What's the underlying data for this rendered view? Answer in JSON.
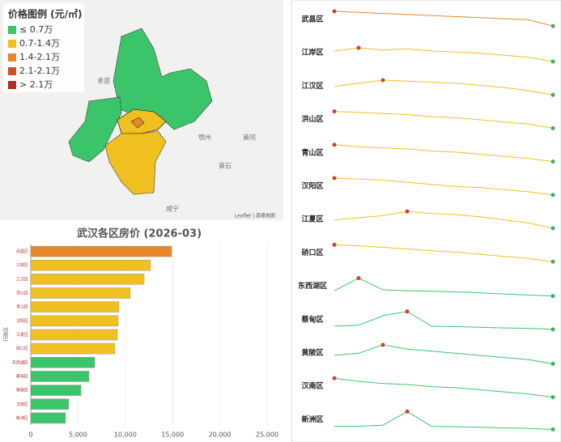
{
  "map": {
    "legend": {
      "title": "价格图例 (元/㎡)",
      "items": [
        "≤ 0.7万",
        "0.7-1.4万",
        "1.4-2.1万",
        "2.1-2.1万",
        "> 2.1万"
      ],
      "colors": [
        "#3cc46a",
        "#f0c020",
        "#e8862a",
        "#d0502a",
        "#a8321e"
      ]
    },
    "places": [
      "孝感",
      "黄冈",
      "鄂州",
      "黄石",
      "咸宁"
    ],
    "attribution": "Leaflet | 高德地图"
  },
  "chart_data": [
    {
      "type": "hbar",
      "title": "武汉各区房价 (2026-03)",
      "y_label": "行政区",
      "categories": [
        "武昌区",
        "江岸区",
        "江汉区",
        "洪山区",
        "青山区",
        "汉阳区",
        "江夏区",
        "硚口区",
        "东西湖区",
        "蔡甸区",
        "黄陂区",
        "汉南区",
        "新洲区"
      ],
      "values": [
        14900,
        12670,
        11990,
        10530,
        9330,
        9250,
        9160,
        8900,
        6760,
        6160,
        5310,
        4020,
        3680
      ],
      "colors": [
        "#e8862a",
        "#f0c020",
        "#f0c020",
        "#f0c020",
        "#f0c020",
        "#f0c020",
        "#f0c020",
        "#f0c020",
        "#3cc46a",
        "#3cc46a",
        "#3cc46a",
        "#3cc46a",
        "#3cc46a"
      ],
      "xlim": [
        0,
        25000
      ],
      "xticks": [
        0,
        {
          "value": 5000,
          "label": "5,000"
        },
        {
          "value": 10000,
          "label": "10,000"
        },
        {
          "value": 15000,
          "label": "15,000"
        },
        {
          "value": 20000,
          "label": "20,000"
        },
        {
          "value": 25000,
          "label": "25,000"
        }
      ],
      "grid": true
    },
    {
      "type": "sparkline",
      "ylim": [
        0,
        100
      ],
      "series": [
        {
          "name": "武昌区",
          "color": "#e8862a",
          "values": [
            100,
            95,
            90,
            85,
            80,
            75,
            70,
            65,
            60,
            30
          ]
        },
        {
          "name": "江岸区",
          "color": "#f0c020",
          "values": [
            70,
            85,
            75,
            80,
            70,
            65,
            60,
            50,
            40,
            20
          ]
        },
        {
          "name": "江汉区",
          "color": "#f0c020",
          "values": [
            60,
            75,
            90,
            85,
            80,
            75,
            65,
            55,
            40,
            20
          ]
        },
        {
          "name": "洪山区",
          "color": "#f0c020",
          "values": [
            100,
            95,
            90,
            85,
            75,
            70,
            60,
            50,
            40,
            20
          ]
        },
        {
          "name": "青山区",
          "color": "#f0c020",
          "values": [
            100,
            90,
            85,
            80,
            70,
            65,
            55,
            45,
            35,
            20
          ]
        },
        {
          "name": "汉阳区",
          "color": "#f0c020",
          "values": [
            100,
            95,
            90,
            80,
            70,
            60,
            55,
            45,
            35,
            20
          ]
        },
        {
          "name": "江夏区",
          "color": "#f0c020",
          "values": [
            60,
            70,
            80,
            100,
            90,
            85,
            75,
            60,
            45,
            20
          ]
        },
        {
          "name": "硚口区",
          "color": "#f0c020",
          "values": [
            100,
            95,
            88,
            80,
            72,
            65,
            55,
            45,
            35,
            20
          ]
        },
        {
          "name": "东西湖区",
          "color": "#3cc46a",
          "values": [
            40,
            100,
            45,
            40,
            38,
            35,
            30,
            25,
            20,
            15
          ]
        },
        {
          "name": "蔡甸区",
          "color": "#3cc46a",
          "values": [
            30,
            35,
            80,
            100,
            30,
            28,
            25,
            22,
            20,
            15
          ]
        },
        {
          "name": "黄陂区",
          "color": "#3cc46a",
          "values": [
            50,
            60,
            100,
            80,
            70,
            60,
            50,
            40,
            30,
            10
          ]
        },
        {
          "name": "汉南区",
          "color": "#3cc46a",
          "values": [
            100,
            85,
            75,
            70,
            60,
            55,
            45,
            35,
            25,
            10
          ]
        },
        {
          "name": "新洲区",
          "color": "#3cc46a",
          "values": [
            30,
            30,
            35,
            100,
            30,
            28,
            25,
            22,
            20,
            15
          ]
        }
      ]
    }
  ]
}
